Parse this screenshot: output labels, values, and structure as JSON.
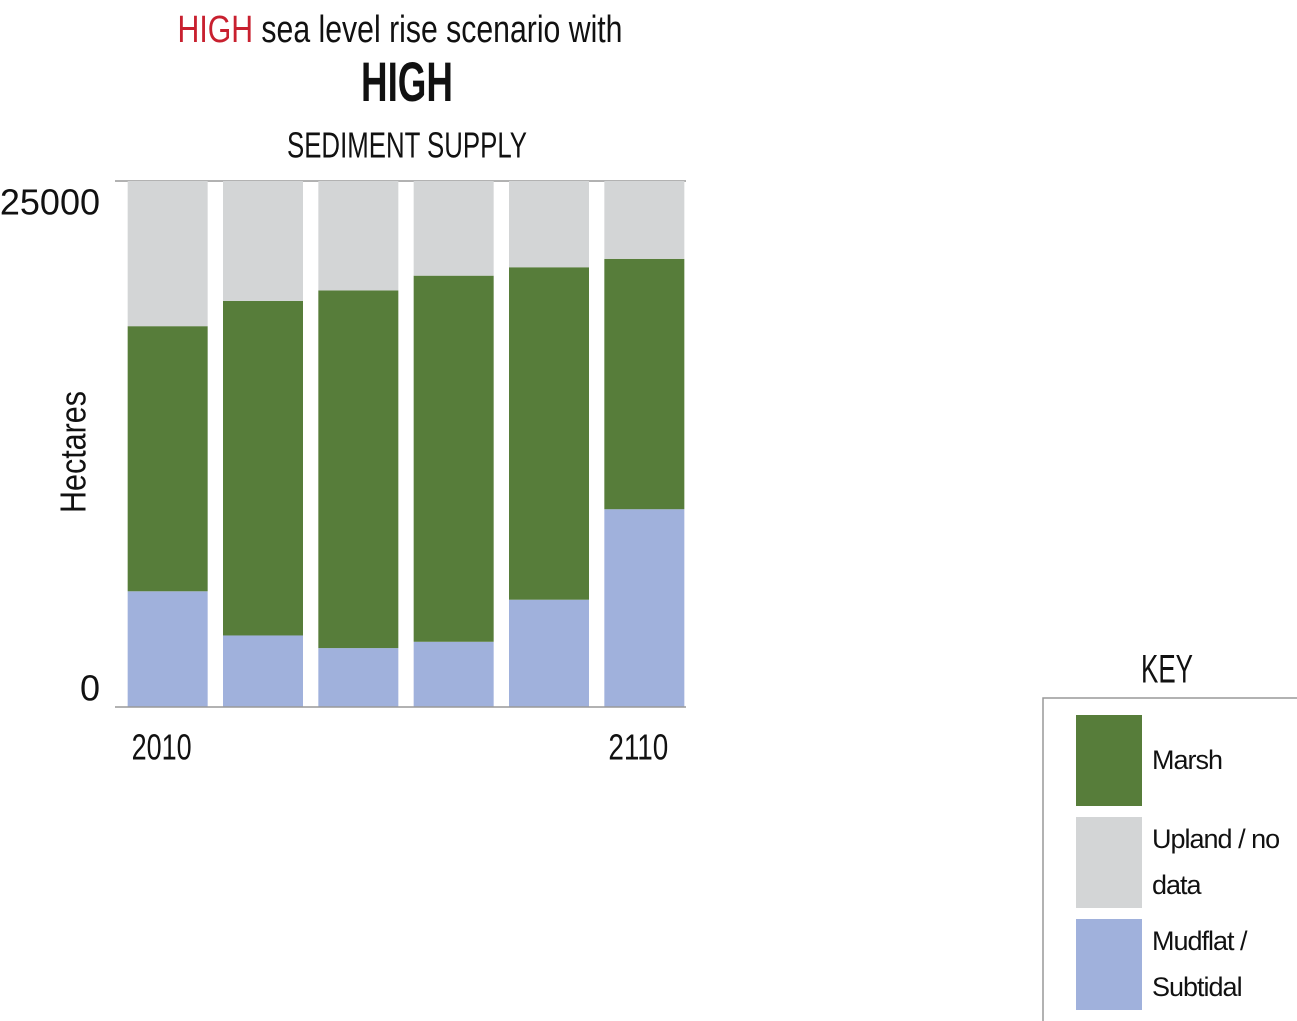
{
  "chart_data": {
    "type": "stacked_bar",
    "title_highlight": "HIGH",
    "title_rest": "sea level rise scenario with",
    "title_line2": "HIGH",
    "title_line3": "SEDIMENT SUPPLY",
    "y_label": "Hectares",
    "categories": [
      "2010",
      null,
      null,
      null,
      null,
      "2110"
    ],
    "series": [
      {
        "name": "Mudflat / Subtidal",
        "color": "#a0b1dc",
        "values": [
          5500,
          3400,
          2800,
          3100,
          5100,
          9400
        ]
      },
      {
        "name": "Marsh",
        "color": "#577d3a",
        "values": [
          12600,
          15900,
          17000,
          17400,
          15800,
          11900
        ]
      },
      {
        "name": "Upland / no data",
        "color": "#d3d5d6",
        "values": [
          6900,
          5700,
          5200,
          4500,
          4100,
          3700
        ]
      }
    ],
    "ylim": [
      0,
      25000
    ],
    "yticks": [
      0,
      25000
    ],
    "legend_title": "KEY",
    "title_color": "#c8202f"
  }
}
